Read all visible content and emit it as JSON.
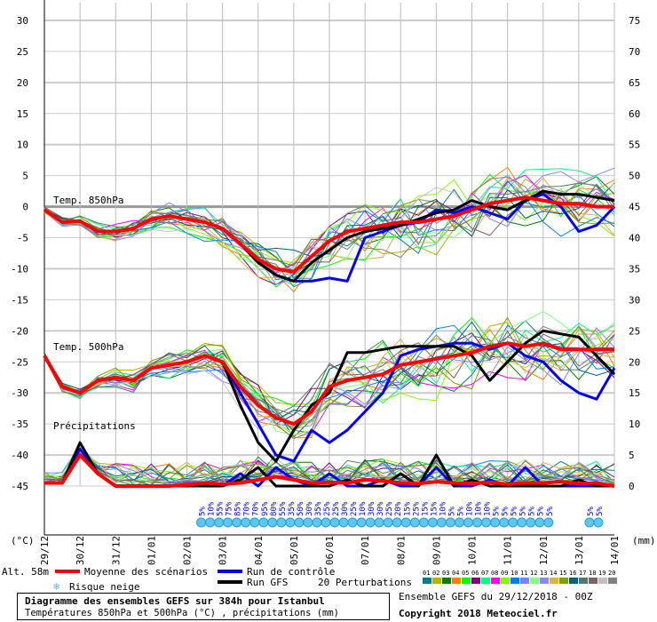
{
  "chart_data": {
    "type": "line",
    "title": "Diagramme des ensembles GEFS sur 384h pour Istanbul",
    "subtitle": "Températures 850hPa et 500hPa (°C) , précipitations (mm)",
    "run_info": "Ensemble GEFS du 29/12/2018 - 00Z",
    "copyright": "Copyright 2018 Meteociel.fr",
    "altitude": "Alt. 58m",
    "left_unit": "(°C)",
    "right_unit": "(mm)",
    "ylim_left": [
      -45,
      30
    ],
    "ylim_right": [
      0,
      75
    ],
    "left_ticks": [
      "30",
      "25",
      "20",
      "15",
      "10",
      "5",
      "0",
      "-5",
      "-10",
      "-15",
      "-20",
      "-25",
      "-30",
      "-35",
      "-40",
      "-45"
    ],
    "right_ticks": [
      "75",
      "70",
      "65",
      "60",
      "55",
      "50",
      "45",
      "40",
      "35",
      "30",
      "25",
      "20",
      "15",
      "10",
      "5",
      "0"
    ],
    "x_ticks": [
      "29/12",
      "30/12",
      "31/12",
      "01/01",
      "02/01",
      "03/01",
      "04/01",
      "05/01",
      "06/01",
      "07/01",
      "08/01",
      "09/01",
      "10/01",
      "11/01",
      "12/01",
      "13/01",
      "14/01"
    ],
    "section_labels": {
      "t850": "Temp. 850hPa",
      "t500": "Temp. 500hPa",
      "precip": "Précipitations"
    },
    "x_step_days": 0.5,
    "series": [
      {
        "name": "Moyenne 850hPa",
        "color": "#ff0000",
        "values": [
          -0.5,
          -2.5,
          -2.3,
          -4,
          -4,
          -3.5,
          -2,
          -1.5,
          -2,
          -2.5,
          -3.5,
          -6,
          -8.5,
          -10,
          -10.5,
          -8,
          -5.5,
          -4,
          -3.5,
          -3,
          -2.5,
          -2.5,
          -2,
          -1.5,
          -0.5,
          0.5,
          1,
          1.5,
          1,
          0.5,
          0.5,
          0,
          0
        ]
      },
      {
        "name": "Contrôle 850hPa",
        "color": "#0000ff",
        "values": [
          -0.5,
          -2.5,
          -2.3,
          -4,
          -4,
          -3.5,
          -2,
          -1.5,
          -2,
          -2.5,
          -3.5,
          -6,
          -9,
          -11,
          -12,
          -12,
          -11.5,
          -12,
          -5,
          -4,
          -3,
          -2.5,
          -0.5,
          -1,
          0,
          -1,
          -2,
          1,
          2,
          0,
          -4,
          -3,
          0
        ]
      },
      {
        "name": "GFS 850hPa",
        "color": "#000000",
        "values": [
          -0.5,
          -2.5,
          -2.3,
          -4,
          -4,
          -3.5,
          -2,
          -1.5,
          -2,
          -2.5,
          -3.5,
          -6,
          -9,
          -11,
          -12,
          -9,
          -7,
          -5,
          -4,
          -3.5,
          -3,
          -2,
          -1,
          -0.5,
          1,
          0,
          -0.5,
          1,
          2.5,
          2,
          2,
          1.5,
          1
        ]
      },
      {
        "name": "Moyenne 500hPa",
        "color": "#ff0000",
        "values": [
          -24,
          -29,
          -30,
          -28,
          -27.5,
          -28,
          -26,
          -25.5,
          -25,
          -24,
          -25,
          -29,
          -32,
          -34,
          -35,
          -33,
          -29,
          -28,
          -27.5,
          -27,
          -25.5,
          -25,
          -24.5,
          -24,
          -23.5,
          -22.5,
          -22,
          -22.5,
          -22,
          -23,
          -23,
          -23,
          -23
        ]
      },
      {
        "name": "Contrôle 500hPa",
        "color": "#0000ff",
        "values": [
          -24,
          -29,
          -30,
          -28,
          -27.5,
          -28,
          -26,
          -25.5,
          -25,
          -24,
          -25,
          -30,
          -35,
          -40,
          -41,
          -36,
          -38,
          -36,
          -33,
          -30,
          -24,
          -23,
          -22.5,
          -22,
          -22,
          -23,
          -22,
          -24,
          -25,
          -28,
          -30,
          -31,
          -26
        ]
      },
      {
        "name": "GFS 500hPa",
        "color": "#000000",
        "values": [
          -24,
          -29,
          -30,
          -28,
          -27.5,
          -28,
          -26,
          -25.5,
          -25,
          -24,
          -25,
          -32,
          -38,
          -41,
          -36,
          -32,
          -30,
          -23.5,
          -23.5,
          -23,
          -22.5,
          -22.5,
          -22.5,
          -22.5,
          -24,
          -28,
          -25,
          -22,
          -20,
          -20.5,
          -21,
          -24,
          -27
        ]
      },
      {
        "name": "Moyenne précip (mm)",
        "color": "#ff0000",
        "values": [
          0.5,
          0.5,
          5,
          2,
          0,
          0,
          0,
          0,
          0.2,
          0.5,
          0.3,
          0.5,
          1,
          1.5,
          1,
          0.5,
          0.6,
          0.5,
          1,
          0.8,
          0.5,
          0.4,
          0.7,
          0.5,
          0.4,
          0.6,
          0.3,
          0.5,
          0.5,
          0.7,
          0.4,
          0.5,
          0
        ]
      },
      {
        "name": "Contrôle précip (mm)",
        "color": "#0000ff",
        "values": [
          0.5,
          0.5,
          6,
          2,
          0,
          0,
          0,
          0,
          0,
          0.5,
          0,
          2,
          0,
          3,
          1,
          0,
          2,
          0,
          0,
          1,
          0,
          0,
          3,
          0,
          0,
          1,
          0,
          3,
          0,
          0,
          0,
          0,
          0
        ]
      },
      {
        "name": "GFS précip (mm)",
        "color": "#000000",
        "values": [
          0.5,
          0.5,
          7,
          2,
          0,
          0,
          0,
          0,
          0,
          0,
          0,
          1,
          3,
          0,
          0,
          0,
          0,
          1,
          0,
          0,
          2,
          0,
          5,
          0,
          1,
          0,
          0,
          0,
          0,
          0,
          1,
          0,
          0
        ]
      }
    ],
    "snow_risk": {
      "start_day": 4.4,
      "step_days": 0.25,
      "values": [
        "5%",
        "10%",
        "55%",
        "75%",
        "85%",
        "70%",
        "70%",
        "95%",
        "80%",
        "55%",
        "35%",
        "50%",
        "30%",
        "35%",
        "25%",
        "25%",
        "30%",
        "25%",
        "10%",
        "30%",
        "30%",
        "25%",
        "20%",
        "15%",
        "25%",
        "15%",
        "15%",
        "10%",
        "5%",
        "5%",
        "10%",
        "10%",
        "10%",
        "5%",
        "5%",
        "5%",
        "5%",
        "5%",
        "5%",
        "5%"
      ],
      "late_start_day": 15.3,
      "late_values": [
        "5%",
        "5%"
      ]
    },
    "legend": {
      "mean": "Moyenne des scénarios",
      "control": "Run de contrôle",
      "gfs": "Run GFS",
      "snow": "Risque neige",
      "perturbations": "20 Perturbations",
      "pert_ids": [
        "01",
        "02",
        "03",
        "04",
        "05",
        "06",
        "07",
        "08",
        "09",
        "10",
        "11",
        "12",
        "13",
        "14",
        "15",
        "16",
        "17",
        "18",
        "19",
        "20"
      ],
      "pert_colors": [
        "#008080",
        "#b4b400",
        "#008000",
        "#ff8000",
        "#00ff00",
        "#800080",
        "#00ff80",
        "#ff00ff",
        "#80ff00",
        "#0080ff",
        "#8080ff",
        "#80ff80",
        "#8888ff",
        "#e0b040",
        "#80a000",
        "#006080",
        "#507878",
        "#806060",
        "#c0c0c0",
        "#808080"
      ]
    }
  }
}
